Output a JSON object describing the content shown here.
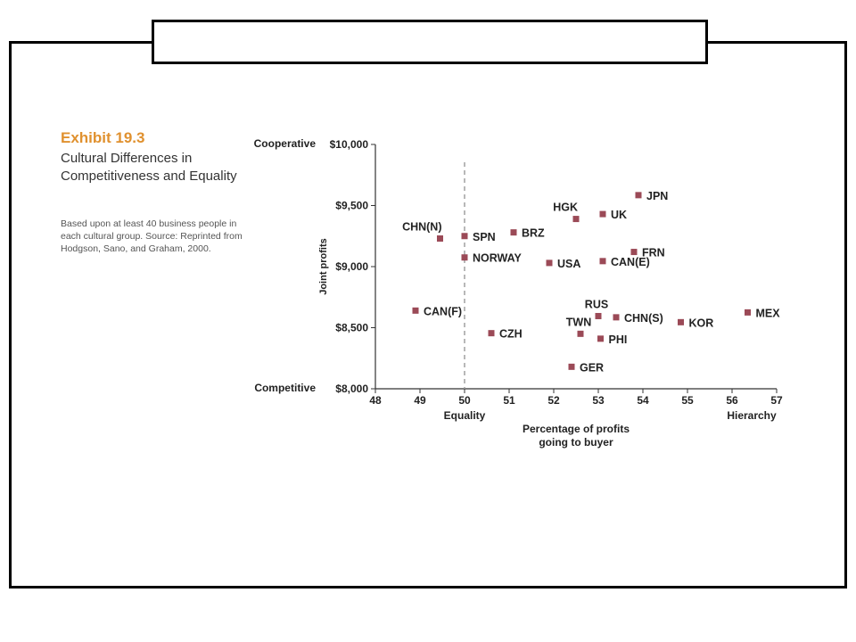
{
  "slide": {
    "title_box_text": ""
  },
  "exhibit": {
    "title": "Exhibit 19.3",
    "subtitle": "Cultural Differences in Competitiveness and Equality",
    "note": "Based upon at least 40 business people in each cultural group. Source: Reprinted from Hodgson, Sano, and Graham, 2000."
  },
  "colors": {
    "accent_title": "#e0912f",
    "marker": "#9b4a57",
    "axis": "#333333",
    "reference_line": "#999999"
  },
  "chart_data": {
    "type": "scatter",
    "title": "",
    "xlabel": "Percentage of profits going to buyer",
    "xlabel_lines": [
      "Percentage of profits",
      "going to buyer"
    ],
    "ylabel": "Joint profits",
    "xlim": [
      48,
      57
    ],
    "ylim": [
      8000,
      10000
    ],
    "x_ticks": [
      "48",
      "49",
      "50",
      "51",
      "52",
      "53",
      "54",
      "55",
      "56",
      "57"
    ],
    "y_ticks": [
      "$8,000",
      "$8,500",
      "$9,000",
      "$9,500",
      "$10,000"
    ],
    "y_tick_values": [
      8000,
      8500,
      9000,
      9500,
      10000
    ],
    "y_annotations": {
      "top": "Cooperative",
      "bottom": "Competitive"
    },
    "x_annotations": {
      "left": "Equality",
      "right": "Hierarchy"
    },
    "reference_line_x": 50,
    "grid": false,
    "legend": "none",
    "points": [
      {
        "label": "JPN",
        "x": 53.9,
        "y": 9585,
        "label_pos": "right"
      },
      {
        "label": "HGK",
        "x": 52.5,
        "y": 9390,
        "label_pos": "above-left"
      },
      {
        "label": "UK",
        "x": 53.1,
        "y": 9430,
        "label_pos": "right"
      },
      {
        "label": "CHN(N)",
        "x": 49.45,
        "y": 9230,
        "label_pos": "above-left"
      },
      {
        "label": "SPN",
        "x": 50.0,
        "y": 9250,
        "label_pos": "right"
      },
      {
        "label": "BRZ",
        "x": 51.1,
        "y": 9280,
        "label_pos": "right"
      },
      {
        "label": "NORWAY",
        "x": 50.0,
        "y": 9075,
        "label_pos": "right"
      },
      {
        "label": "USA",
        "x": 51.9,
        "y": 9030,
        "label_pos": "right"
      },
      {
        "label": "FRN",
        "x": 53.8,
        "y": 9120,
        "label_pos": "right"
      },
      {
        "label": "CAN(E)",
        "x": 53.1,
        "y": 9045,
        "label_pos": "right"
      },
      {
        "label": "CAN(F)",
        "x": 48.9,
        "y": 8640,
        "label_pos": "right"
      },
      {
        "label": "RUS",
        "x": 53.0,
        "y": 8595,
        "label_pos": "above"
      },
      {
        "label": "CHN(S)",
        "x": 53.4,
        "y": 8585,
        "label_pos": "right"
      },
      {
        "label": "KOR",
        "x": 54.85,
        "y": 8545,
        "label_pos": "right"
      },
      {
        "label": "MEX",
        "x": 56.35,
        "y": 8625,
        "label_pos": "right"
      },
      {
        "label": "TWN",
        "x": 52.6,
        "y": 8450,
        "label_pos": "above"
      },
      {
        "label": "PHI",
        "x": 53.05,
        "y": 8410,
        "label_pos": "right"
      },
      {
        "label": "CZH",
        "x": 50.6,
        "y": 8455,
        "label_pos": "right"
      },
      {
        "label": "GER",
        "x": 52.4,
        "y": 8180,
        "label_pos": "right"
      }
    ]
  }
}
